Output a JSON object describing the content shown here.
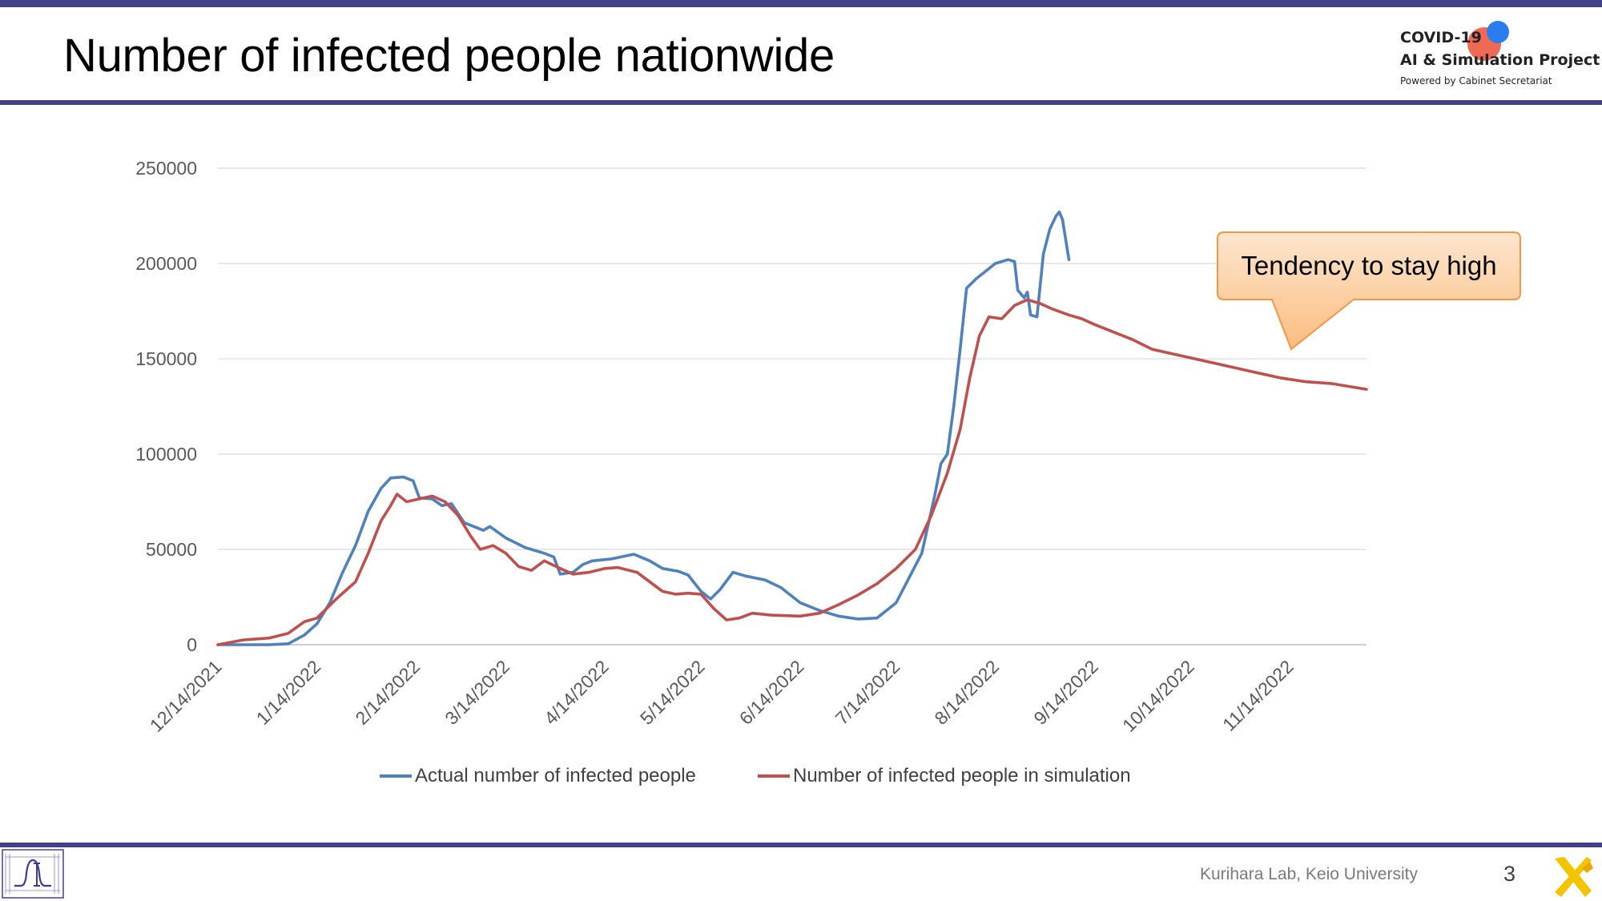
{
  "slide": {
    "title": "Number of infected people nationwide",
    "footer": "Kurihara Lab, Keio University",
    "page_number": "3"
  },
  "logo": {
    "line1": "COVID-19",
    "line2": "AI & Simulation Project",
    "line3": "Powered by Cabinet Secretariat"
  },
  "callout": {
    "text": "Tendency to stay high"
  },
  "colors": {
    "brand_bar": "#43418a",
    "actual": "#4f81bd",
    "simulation": "#c0504d",
    "callout_fill": "#fbcb96",
    "callout_border": "#f79646"
  },
  "icons": [
    "covid-project-logo",
    "ai-lab-logo",
    "x-mark-icon"
  ],
  "chart_data": {
    "type": "line",
    "title": "",
    "xlabel": "",
    "ylabel": "",
    "x_range": [
      "12/14/2021",
      "12/8/2022"
    ],
    "ylim": [
      0,
      250000
    ],
    "y_ticks": [
      0,
      50000,
      100000,
      150000,
      200000,
      250000
    ],
    "x_ticks": [
      "12/14/2021",
      "1/14/2022",
      "2/14/2022",
      "3/14/2022",
      "4/14/2022",
      "5/14/2022",
      "6/14/2022",
      "7/14/2022",
      "8/14/2022",
      "9/14/2022",
      "10/14/2022",
      "11/14/2022"
    ],
    "grid": true,
    "legend": "bottom",
    "series": [
      {
        "name": "Actual number of infected people",
        "color": "#4f81bd",
        "points": [
          [
            "12/14/2021",
            0
          ],
          [
            "12/30/2021",
            0
          ],
          [
            "1/5/2022",
            500
          ],
          [
            "1/10/2022",
            5000
          ],
          [
            "1/14/2022",
            11000
          ],
          [
            "1/18/2022",
            22000
          ],
          [
            "1/22/2022",
            38000
          ],
          [
            "1/26/2022",
            52000
          ],
          [
            "1/30/2022",
            70000
          ],
          [
            "2/3/2022",
            82000
          ],
          [
            "2/6/2022",
            87500
          ],
          [
            "2/10/2022",
            88000
          ],
          [
            "2/13/2022",
            86000
          ],
          [
            "2/15/2022",
            77000
          ],
          [
            "2/19/2022",
            76500
          ],
          [
            "2/22/2022",
            73000
          ],
          [
            "2/25/2022",
            74000
          ],
          [
            "3/1/2022",
            64000
          ],
          [
            "3/7/2022",
            60000
          ],
          [
            "3/9/2022",
            62000
          ],
          [
            "3/14/2022",
            56000
          ],
          [
            "3/20/2022",
            51000
          ],
          [
            "3/26/2022",
            48000
          ],
          [
            "3/29/2022",
            46000
          ],
          [
            "3/31/2022",
            37000
          ],
          [
            "4/4/2022",
            38000
          ],
          [
            "4/7/2022",
            42000
          ],
          [
            "4/10/2022",
            44000
          ],
          [
            "4/16/2022",
            45000
          ],
          [
            "4/23/2022",
            47500
          ],
          [
            "4/28/2022",
            44000
          ],
          [
            "5/2/2022",
            40000
          ],
          [
            "5/7/2022",
            38500
          ],
          [
            "5/10/2022",
            36500
          ],
          [
            "5/14/2022",
            28000
          ],
          [
            "5/17/2022",
            24000
          ],
          [
            "5/20/2022",
            29000
          ],
          [
            "5/24/2022",
            38000
          ],
          [
            "5/28/2022",
            36000
          ],
          [
            "6/3/2022",
            34000
          ],
          [
            "6/8/2022",
            30000
          ],
          [
            "6/14/2022",
            22000
          ],
          [
            "6/20/2022",
            18000
          ],
          [
            "6/26/2022",
            15000
          ],
          [
            "7/2/2022",
            13500
          ],
          [
            "7/8/2022",
            14000
          ],
          [
            "7/14/2022",
            22000
          ],
          [
            "7/18/2022",
            35000
          ],
          [
            "7/22/2022",
            48000
          ],
          [
            "7/26/2022",
            78000
          ],
          [
            "7/28/2022",
            95000
          ],
          [
            "7/30/2022",
            100000
          ],
          [
            "8/1/2022",
            125000
          ],
          [
            "8/3/2022",
            155000
          ],
          [
            "8/5/2022",
            187000
          ],
          [
            "8/8/2022",
            192000
          ],
          [
            "8/11/2022",
            196000
          ],
          [
            "8/14/2022",
            200000
          ],
          [
            "8/18/2022",
            202000
          ],
          [
            "8/20/2022",
            201000
          ],
          [
            "8/21/2022",
            186000
          ],
          [
            "8/23/2022",
            182000
          ],
          [
            "8/24/2022",
            185000
          ],
          [
            "8/25/2022",
            173000
          ],
          [
            "8/27/2022",
            172000
          ],
          [
            "8/29/2022",
            205000
          ],
          [
            "8/31/2022",
            218000
          ],
          [
            "9/2/2022",
            225000
          ],
          [
            "9/3/2022",
            227000
          ],
          [
            "9/4/2022",
            223000
          ],
          [
            "9/6/2022",
            202000
          ]
        ]
      },
      {
        "name": "Number of infected people in simulation",
        "color": "#c0504d",
        "points": [
          [
            "12/14/2021",
            0
          ],
          [
            "12/22/2021",
            2500
          ],
          [
            "12/30/2021",
            3500
          ],
          [
            "1/5/2022",
            6000
          ],
          [
            "1/10/2022",
            12000
          ],
          [
            "1/14/2022",
            14000
          ],
          [
            "1/20/2022",
            24000
          ],
          [
            "1/26/2022",
            33000
          ],
          [
            "1/30/2022",
            48000
          ],
          [
            "2/3/2022",
            65000
          ],
          [
            "2/6/2022",
            73000
          ],
          [
            "2/8/2022",
            79000
          ],
          [
            "2/11/2022",
            75000
          ],
          [
            "2/15/2022",
            76500
          ],
          [
            "2/19/2022",
            78000
          ],
          [
            "2/23/2022",
            75000
          ],
          [
            "2/27/2022",
            68000
          ],
          [
            "3/3/2022",
            57000
          ],
          [
            "3/6/2022",
            50000
          ],
          [
            "3/10/2022",
            52000
          ],
          [
            "3/14/2022",
            48000
          ],
          [
            "3/18/2022",
            41000
          ],
          [
            "3/22/2022",
            39000
          ],
          [
            "3/26/2022",
            44000
          ],
          [
            "3/31/2022",
            40000
          ],
          [
            "4/4/2022",
            37000
          ],
          [
            "4/9/2022",
            38000
          ],
          [
            "4/14/2022",
            40000
          ],
          [
            "4/18/2022",
            40500
          ],
          [
            "4/24/2022",
            38000
          ],
          [
            "4/28/2022",
            33000
          ],
          [
            "5/2/2022",
            28000
          ],
          [
            "5/6/2022",
            26500
          ],
          [
            "5/10/2022",
            27000
          ],
          [
            "5/14/2022",
            26500
          ],
          [
            "5/18/2022",
            19000
          ],
          [
            "5/22/2022",
            13000
          ],
          [
            "5/26/2022",
            14000
          ],
          [
            "5/30/2022",
            16500
          ],
          [
            "6/5/2022",
            15500
          ],
          [
            "6/14/2022",
            15000
          ],
          [
            "6/20/2022",
            16500
          ],
          [
            "6/26/2022",
            21000
          ],
          [
            "7/2/2022",
            26000
          ],
          [
            "7/8/2022",
            32000
          ],
          [
            "7/14/2022",
            40000
          ],
          [
            "7/20/2022",
            50000
          ],
          [
            "7/25/2022",
            68000
          ],
          [
            "7/30/2022",
            90000
          ],
          [
            "8/3/2022",
            113000
          ],
          [
            "8/6/2022",
            140000
          ],
          [
            "8/9/2022",
            162000
          ],
          [
            "8/12/2022",
            172000
          ],
          [
            "8/16/2022",
            171000
          ],
          [
            "8/20/2022",
            178000
          ],
          [
            "8/24/2022",
            181000
          ],
          [
            "8/28/2022",
            179000
          ],
          [
            "9/1/2022",
            176000
          ],
          [
            "9/6/2022",
            173000
          ],
          [
            "9/10/2022",
            171000
          ],
          [
            "9/14/2022",
            168000
          ],
          [
            "9/20/2022",
            164000
          ],
          [
            "9/26/2022",
            160000
          ],
          [
            "10/2/2022",
            155000
          ],
          [
            "10/10/2022",
            152000
          ],
          [
            "10/18/2022",
            149000
          ],
          [
            "10/26/2022",
            146000
          ],
          [
            "11/3/2022",
            143000
          ],
          [
            "11/11/2022",
            140000
          ],
          [
            "11/19/2022",
            138000
          ],
          [
            "11/27/2022",
            137000
          ],
          [
            "12/8/2022",
            134000
          ]
        ]
      }
    ]
  }
}
